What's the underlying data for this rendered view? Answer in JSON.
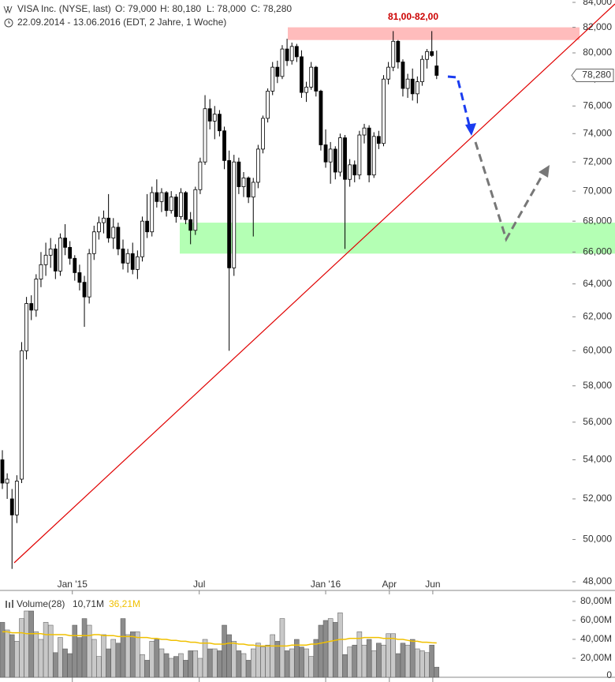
{
  "chart_data": [
    {
      "type": "candlestick",
      "title": "VISA Inc. (NYSE, last)",
      "ohlc_labels": [
        "O: 79,000",
        "H: 80,180",
        "L: 78,000",
        "C: 78,280"
      ],
      "subtitle": "22.09.2014 - 13.06.2016 (EDT, 2 Jahre, 1 Woche)",
      "log_scale": true,
      "up_color": "#ffffff",
      "down_color": "#000000",
      "categories": [
        null,
        null,
        null,
        null,
        null,
        null,
        null,
        null,
        null,
        null,
        null,
        null,
        null,
        null,
        null,
        null,
        null,
        null,
        null,
        null,
        null,
        null,
        null,
        null,
        null,
        null,
        null,
        null,
        null,
        null,
        null,
        null,
        null,
        null,
        null,
        null,
        null,
        null,
        null,
        null,
        null,
        null,
        null,
        null,
        null,
        null,
        null,
        null,
        null,
        null,
        null,
        null,
        null,
        null,
        null,
        null,
        null,
        null,
        null,
        null,
        null,
        null,
        null,
        null,
        null,
        null,
        null,
        null,
        null,
        null,
        null,
        null,
        null,
        null,
        null,
        null,
        null,
        null,
        null,
        null,
        null,
        null,
        null,
        null,
        null,
        null,
        null,
        null,
        null,
        null,
        null
      ],
      "open": [
        54000,
        52800,
        52000,
        51200,
        53000,
        60000,
        62800,
        62400,
        64300,
        65200,
        65800,
        66200,
        64800,
        66900,
        66300,
        65600,
        64700,
        64100,
        63200,
        65900,
        67300,
        67900,
        68200,
        66900,
        67600,
        66200,
        65300,
        65900,
        64900,
        65700,
        68000,
        67300,
        69900,
        69300,
        69900,
        68700,
        69600,
        68300,
        69900,
        68100,
        67400,
        70100,
        72000,
        75800,
        74900,
        75400,
        74200,
        72100,
        65000,
        72000,
        70300,
        70900,
        69600,
        70600,
        72900,
        75100,
        77100,
        78900,
        78200,
        80300,
        79400,
        80500,
        79700,
        77000,
        77400,
        78900,
        77100,
        73200,
        72000,
        72900,
        71300,
        73700,
        70800,
        71800,
        71100,
        73900,
        74400,
        71100,
        73800,
        73300,
        78000,
        78900,
        80900,
        79300,
        77300,
        78000,
        76900,
        77800,
        79500,
        80100,
        79000
      ],
      "high": [
        54500,
        53300,
        52500,
        53200,
        60500,
        63200,
        63300,
        64600,
        66000,
        66600,
        66900,
        66500,
        67200,
        67800,
        66700,
        65800,
        65200,
        64500,
        66200,
        67700,
        68300,
        68700,
        69800,
        68200,
        67900,
        66800,
        66200,
        66600,
        66100,
        68300,
        69800,
        70300,
        70800,
        70200,
        70000,
        70000,
        69800,
        70200,
        70000,
        68600,
        70300,
        72300,
        76800,
        76500,
        76000,
        75700,
        74500,
        72800,
        72500,
        72300,
        71300,
        71000,
        70900,
        73200,
        75300,
        77300,
        79300,
        79400,
        80600,
        81100,
        80800,
        80700,
        80200,
        77800,
        79300,
        79000,
        77200,
        74300,
        73400,
        73100,
        74000,
        73900,
        72200,
        72100,
        74200,
        74700,
        74600,
        74100,
        74200,
        78300,
        79300,
        81700,
        81000,
        79500,
        78400,
        78800,
        78200,
        79800,
        80300,
        81700,
        80180
      ],
      "low": [
        52500,
        52000,
        48600,
        50800,
        52800,
        59500,
        61800,
        62000,
        63800,
        64500,
        65000,
        64300,
        64500,
        65800,
        65200,
        64200,
        63600,
        61400,
        62800,
        65500,
        66800,
        67200,
        66600,
        66200,
        65800,
        64900,
        64700,
        64600,
        64300,
        65400,
        66900,
        67000,
        68900,
        68600,
        68300,
        68500,
        67900,
        68100,
        67800,
        66500,
        67100,
        69800,
        71800,
        74300,
        73600,
        73800,
        71500,
        60000,
        64500,
        69800,
        69600,
        69200,
        67000,
        70200,
        72600,
        74800,
        76800,
        77700,
        78000,
        79000,
        79100,
        79300,
        76600,
        76300,
        77200,
        76700,
        72800,
        71600,
        70500,
        70800,
        71000,
        66200,
        70300,
        70600,
        70800,
        73300,
        70600,
        70900,
        72900,
        73100,
        77600,
        78600,
        78800,
        76700,
        76600,
        76400,
        76200,
        77500,
        78800,
        79700,
        78000
      ],
      "close": [
        52800,
        53000,
        51200,
        52900,
        60000,
        62800,
        62400,
        64300,
        65200,
        65800,
        66200,
        64800,
        66900,
        66300,
        65600,
        64700,
        64100,
        63200,
        65900,
        67300,
        67900,
        68200,
        66900,
        67600,
        66200,
        65300,
        65900,
        64900,
        65700,
        68000,
        67300,
        69900,
        69300,
        69900,
        68700,
        69600,
        68300,
        69900,
        68100,
        67400,
        70100,
        72000,
        75800,
        74900,
        75400,
        74200,
        72100,
        65000,
        72000,
        70300,
        70900,
        69600,
        70600,
        72900,
        75100,
        77100,
        78900,
        78200,
        80300,
        79400,
        80500,
        79700,
        77000,
        77400,
        78900,
        77100,
        73200,
        72000,
        72900,
        71300,
        73700,
        70800,
        71800,
        71100,
        73900,
        74400,
        71100,
        73800,
        73300,
        78000,
        78900,
        80900,
        79300,
        77300,
        78000,
        76900,
        77800,
        79500,
        80100,
        79800,
        78280
      ],
      "ylim": [
        48000,
        84000
      ],
      "yticks": [
        {
          "value": 48000,
          "label": "48,000"
        },
        {
          "value": 50000,
          "label": "50,000"
        },
        {
          "value": 52000,
          "label": "52,000"
        },
        {
          "value": 54000,
          "label": "54,000"
        },
        {
          "value": 56000,
          "label": "56,000"
        },
        {
          "value": 58000,
          "label": "58,000"
        },
        {
          "value": 60000,
          "label": "60,000"
        },
        {
          "value": 62000,
          "label": "62,000"
        },
        {
          "value": 64000,
          "label": "64,000"
        },
        {
          "value": 66000,
          "label": "66,000"
        },
        {
          "value": 68000,
          "label": "68,000"
        },
        {
          "value": 70000,
          "label": "70,000"
        },
        {
          "value": 72000,
          "label": "72,000"
        },
        {
          "value": 74000,
          "label": "74,000"
        },
        {
          "value": 76000,
          "label": "76,000"
        },
        {
          "value": 78000,
          "label": "78,000"
        },
        {
          "value": 80000,
          "label": "80,000"
        },
        {
          "value": 82000,
          "label": "82,000"
        },
        {
          "value": 84000,
          "label": "84,000"
        }
      ],
      "xticks": [
        {
          "value": 14.5,
          "label": "Jan '15"
        },
        {
          "value": 40.8,
          "label": "Jul"
        },
        {
          "value": 67,
          "label": "Jan '16"
        },
        {
          "value": 80.2,
          "label": "Apr"
        },
        {
          "value": 89.2,
          "label": "Jun"
        }
      ],
      "last": {
        "value": 78280,
        "label": "78,280"
      },
      "resistance": {
        "label": "81,00-82,00",
        "range": [
          81000,
          82000
        ],
        "color": "#ffbcbc",
        "label_color": "#cc0000"
      },
      "support": {
        "range": [
          65900,
          67900
        ],
        "color": "#b4ffb4"
      }
    },
    {
      "type": "bar",
      "title": "Volume(28)",
      "stats": [
        "10,71M",
        "36,21M"
      ],
      "up_color": "#c8c8c8",
      "down_color": "#8c8c8c",
      "ma_color": "#f0c000",
      "values": [
        58,
        50,
        45,
        38,
        62,
        70,
        70,
        48,
        40,
        58,
        55,
        26,
        42,
        30,
        25,
        55,
        42,
        62,
        55,
        40,
        22,
        45,
        30,
        40,
        36,
        62,
        45,
        48,
        48,
        24,
        18,
        38,
        40,
        30,
        25,
        20,
        22,
        25,
        18,
        28,
        28,
        20,
        40,
        30,
        30,
        28,
        55,
        45,
        38,
        28,
        25,
        18,
        30,
        36,
        32,
        34,
        45,
        38,
        62,
        28,
        30,
        40,
        32,
        30,
        22,
        40,
        55,
        60,
        62,
        58,
        68,
        24,
        32,
        34,
        48,
        34,
        40,
        28,
        36,
        34,
        46,
        46,
        25,
        36,
        34,
        40,
        30,
        28,
        26,
        34,
        10.71
      ],
      "ma": [
        48,
        48,
        47,
        47,
        47,
        46,
        46,
        46,
        46,
        45,
        45,
        45,
        45,
        45,
        44,
        44,
        44,
        44,
        44,
        45,
        45,
        44,
        44,
        44,
        43,
        43,
        43,
        43,
        42,
        42,
        42,
        41,
        41,
        40,
        40,
        39,
        39,
        38,
        38,
        37,
        37,
        36,
        36,
        36,
        35,
        35,
        35,
        36,
        36,
        35,
        35,
        34,
        34,
        33,
        33,
        33,
        33,
        33,
        33,
        33,
        34,
        34,
        34,
        34,
        35,
        35,
        36,
        37,
        38,
        39,
        40,
        40,
        41,
        41,
        41,
        42,
        42,
        42,
        42,
        41,
        41,
        41,
        40,
        40,
        39,
        38,
        38,
        37,
        37,
        36.5,
        36.21
      ],
      "ylim": [
        0,
        80
      ],
      "yticks": [
        0,
        {
          "value": 20,
          "label": "20,00M"
        },
        {
          "value": 40,
          "label": "40,00M"
        },
        {
          "value": 60,
          "label": "60,00M"
        },
        {
          "value": 80,
          "label": "80,00M"
        }
      ]
    }
  ]
}
